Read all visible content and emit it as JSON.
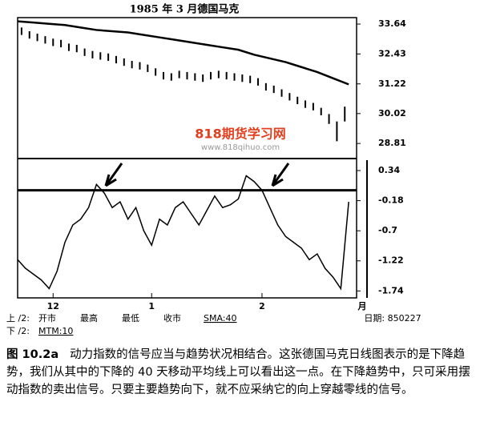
{
  "chart_data": [
    {
      "type": "hilo",
      "title": "1985 年 3 月德国马克",
      "x": [
        1,
        3,
        5,
        7,
        9,
        11,
        13,
        15,
        17,
        19,
        21,
        23,
        25,
        27,
        29,
        31,
        33,
        35,
        37,
        39,
        41,
        43,
        45,
        47,
        49,
        51,
        53,
        55,
        57,
        59,
        61,
        63,
        65,
        67,
        69,
        71,
        73,
        75,
        77,
        79,
        81,
        83
      ],
      "high": [
        33.5,
        33.35,
        33.25,
        33.15,
        33.05,
        33.0,
        32.85,
        32.8,
        32.65,
        32.55,
        32.5,
        32.45,
        32.35,
        32.25,
        32.15,
        32.1,
        32.0,
        31.85,
        31.7,
        31.65,
        31.75,
        31.7,
        31.65,
        31.6,
        31.7,
        31.75,
        31.7,
        31.65,
        31.6,
        31.55,
        31.45,
        31.25,
        31.15,
        31.0,
        30.85,
        30.7,
        30.55,
        30.45,
        30.25,
        30.0,
        29.7,
        30.3
      ],
      "low": [
        33.2,
        33.05,
        32.95,
        32.85,
        32.75,
        32.7,
        32.55,
        32.5,
        32.35,
        32.25,
        32.2,
        32.15,
        32.05,
        31.95,
        31.85,
        31.8,
        31.7,
        31.55,
        31.4,
        31.35,
        31.45,
        31.4,
        31.35,
        31.3,
        31.4,
        31.45,
        31.4,
        31.35,
        31.3,
        31.25,
        31.15,
        30.95,
        30.85,
        30.7,
        30.55,
        30.4,
        30.25,
        30.15,
        29.95,
        29.6,
        28.9,
        29.7
      ],
      "line": {
        "x": [
          0,
          4,
          8,
          12,
          16,
          20,
          24,
          28,
          32,
          36,
          40,
          44,
          48,
          52,
          56,
          60,
          64,
          68,
          72,
          76,
          80,
          84
        ],
        "values": [
          33.75,
          33.7,
          33.65,
          33.6,
          33.5,
          33.4,
          33.35,
          33.3,
          33.2,
          33.1,
          33.0,
          32.9,
          32.8,
          32.7,
          32.6,
          32.4,
          32.25,
          32.1,
          31.9,
          31.7,
          31.45,
          31.2
        ]
      },
      "xlim": [
        0,
        86
      ],
      "ylim": [
        28.2,
        33.9
      ],
      "yticks": [
        33.64,
        32.43,
        31.22,
        30.02,
        28.81
      ]
    },
    {
      "type": "line",
      "x": [
        0,
        2,
        4,
        6,
        8,
        10,
        12,
        14,
        16,
        18,
        20,
        22,
        24,
        26,
        28,
        30,
        32,
        34,
        36,
        38,
        40,
        42,
        44,
        46,
        48,
        50,
        52,
        54,
        56,
        58,
        60,
        62,
        64,
        66,
        68,
        70,
        72,
        74,
        76,
        78,
        80,
        82,
        84
      ],
      "values": [
        -1.2,
        -1.35,
        -1.45,
        -1.55,
        -1.7,
        -1.4,
        -0.9,
        -0.6,
        -0.5,
        -0.3,
        0.1,
        -0.05,
        -0.3,
        -0.2,
        -0.5,
        -0.3,
        -0.7,
        -0.95,
        -0.5,
        -0.6,
        -0.3,
        -0.2,
        -0.4,
        -0.6,
        -0.35,
        -0.1,
        -0.3,
        -0.25,
        -0.15,
        0.25,
        0.15,
        0.0,
        -0.3,
        -0.6,
        -0.8,
        -0.9,
        -1.0,
        -1.2,
        -1.1,
        -1.35,
        -1.5,
        -1.7,
        -0.2
      ],
      "hline": 0,
      "xlim": [
        0,
        86
      ],
      "ylim": [
        -1.86,
        0.52
      ],
      "yticks": [
        0.34,
        -0.18,
        -0.7,
        -1.22,
        -1.74
      ],
      "xticks": [
        {
          "value": 9,
          "label": "12"
        },
        {
          "value": 34,
          "label": "1"
        },
        {
          "value": 62,
          "label": "2"
        }
      ],
      "x_label": "月"
    }
  ],
  "legend": {
    "top_prefix": "上 /2:",
    "items": [
      "开市",
      "最高",
      "最低",
      "收市"
    ],
    "sma": "SMA:40",
    "bottom_prefix": "下 /2:",
    "mtm": "MTM:10",
    "date": "日期: 850227"
  },
  "watermark": {
    "name": "818期货学习网",
    "url": "www.818qihuo.com"
  },
  "caption": {
    "label": "图 10.2a",
    "text": "动力指数的信号应当与趋势状况相结合。这张德国马克日线图表示的是下降趋势，我们从其中的下降的 40 天移动平均线上可以看出这一点。在下降趋势中，只可采用摆动指数的卖出信号。只要主要趋势向下，就不应采纳它的向上穿越零线的信号。"
  }
}
